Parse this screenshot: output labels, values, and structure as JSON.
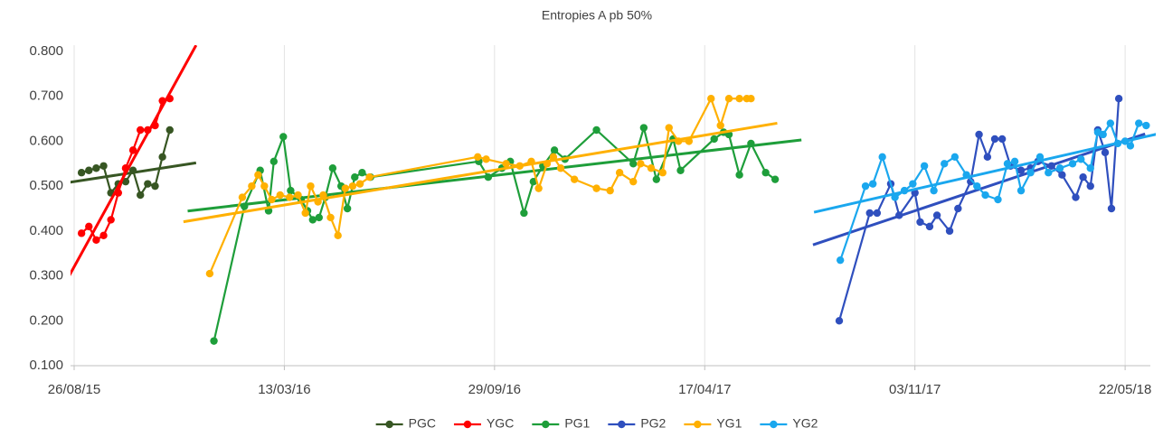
{
  "chart_data": {
    "type": "line",
    "title": "Entropies A pb 50%",
    "xlim": [
      "2015-08-26",
      "2018-06-15"
    ],
    "xticks": [
      {
        "value": "2015-08-26",
        "label": "26/08/15"
      },
      {
        "value": "2016-03-13",
        "label": "13/03/16"
      },
      {
        "value": "2016-09-29",
        "label": "29/09/16"
      },
      {
        "value": "2017-04-17",
        "label": "17/04/17"
      },
      {
        "value": "2017-11-03",
        "label": "03/11/17"
      },
      {
        "value": "2018-05-22",
        "label": "22/05/18"
      }
    ],
    "ylim": [
      0.1,
      0.8
    ],
    "yticks": [
      {
        "value": 0.1,
        "label": "0.100"
      },
      {
        "value": 0.2,
        "label": "0.200"
      },
      {
        "value": 0.3,
        "label": "0.300"
      },
      {
        "value": 0.4,
        "label": "0.400"
      },
      {
        "value": 0.5,
        "label": "0.500"
      },
      {
        "value": 0.6,
        "label": "0.600"
      },
      {
        "value": 0.7,
        "label": "0.700"
      },
      {
        "value": 0.8,
        "label": "0.800"
      }
    ],
    "grid": "x",
    "trendline": true,
    "legend": "bottom",
    "series": [
      {
        "name": "PGC",
        "color": "#375623",
        "x": [
          "2015-09-02",
          "2015-09-09",
          "2015-09-16",
          "2015-09-23",
          "2015-09-30",
          "2015-10-07",
          "2015-10-14",
          "2015-10-21",
          "2015-10-28",
          "2015-11-04",
          "2015-11-11",
          "2015-11-18",
          "2015-11-25"
        ],
        "values": [
          0.53,
          0.535,
          0.54,
          0.545,
          0.485,
          0.505,
          0.51,
          0.535,
          0.48,
          0.505,
          0.5,
          0.565,
          0.625
        ]
      },
      {
        "name": "YGC",
        "color": "#ff0000",
        "x": [
          "2015-09-02",
          "2015-09-09",
          "2015-09-16",
          "2015-09-23",
          "2015-09-30",
          "2015-10-07",
          "2015-10-14",
          "2015-10-21",
          "2015-10-28",
          "2015-11-04",
          "2015-11-11",
          "2015-11-18",
          "2015-11-25"
        ],
        "values": [
          0.395,
          0.41,
          0.38,
          0.39,
          0.425,
          0.485,
          0.54,
          0.58,
          0.625,
          0.625,
          0.635,
          0.69,
          0.695
        ]
      },
      {
        "name": "PG1",
        "color": "#1e9e3a",
        "x": [
          "2016-01-06",
          "2016-02-04",
          "2016-02-19",
          "2016-02-27",
          "2016-03-03",
          "2016-03-12",
          "2016-03-19",
          "2016-03-29",
          "2016-04-04",
          "2016-04-09",
          "2016-04-15",
          "2016-04-21",
          "2016-04-28",
          "2016-05-06",
          "2016-05-12",
          "2016-05-19",
          "2016-05-26",
          "2016-06-03",
          "2016-09-14",
          "2016-09-23",
          "2016-10-06",
          "2016-10-14",
          "2016-10-27",
          "2016-11-05",
          "2016-11-14",
          "2016-11-25",
          "2016-12-05",
          "2017-01-04",
          "2017-02-08",
          "2017-02-18",
          "2017-03-02",
          "2017-03-18",
          "2017-03-25",
          "2017-04-26",
          "2017-05-05",
          "2017-05-10",
          "2017-05-20",
          "2017-05-31",
          "2017-06-14",
          "2017-06-23"
        ],
        "values": [
          0.155,
          0.455,
          0.535,
          0.445,
          0.555,
          0.61,
          0.49,
          0.47,
          0.445,
          0.425,
          0.43,
          0.475,
          0.54,
          0.5,
          0.45,
          0.52,
          0.53,
          0.52,
          0.555,
          0.52,
          0.54,
          0.555,
          0.44,
          0.51,
          0.545,
          0.58,
          0.56,
          0.625,
          0.55,
          0.63,
          0.515,
          0.605,
          0.535,
          0.605,
          0.62,
          0.615,
          0.525,
          0.595,
          0.53,
          0.515
        ]
      },
      {
        "name": "PG2",
        "color": "#2f4fbe",
        "x": [
          "2017-08-23",
          "2017-09-21",
          "2017-09-28",
          "2017-10-11",
          "2017-10-19",
          "2017-11-03",
          "2017-11-08",
          "2017-11-17",
          "2017-11-24",
          "2017-12-06",
          "2017-12-14",
          "2017-12-26",
          "2018-01-03",
          "2018-01-11",
          "2018-01-18",
          "2018-01-25",
          "2018-02-02",
          "2018-02-12",
          "2018-02-21",
          "2018-02-28",
          "2018-03-13",
          "2018-03-23",
          "2018-04-05",
          "2018-04-12",
          "2018-04-19",
          "2018-04-26",
          "2018-05-03",
          "2018-05-09",
          "2018-05-16"
        ],
        "values": [
          0.2,
          0.44,
          0.44,
          0.505,
          0.435,
          0.485,
          0.42,
          0.41,
          0.435,
          0.4,
          0.45,
          0.51,
          0.615,
          0.565,
          0.605,
          0.605,
          0.545,
          0.535,
          0.54,
          0.555,
          0.545,
          0.525,
          0.475,
          0.52,
          0.5,
          0.625,
          0.575,
          0.45,
          0.695
        ]
      },
      {
        "name": "YG1",
        "color": "#ffb000",
        "x": [
          "2016-01-02",
          "2016-02-02",
          "2016-02-11",
          "2016-02-17",
          "2016-02-23",
          "2016-03-01",
          "2016-03-09",
          "2016-03-18",
          "2016-03-26",
          "2016-04-02",
          "2016-04-07",
          "2016-04-14",
          "2016-04-19",
          "2016-04-26",
          "2016-05-03",
          "2016-05-10",
          "2016-05-17",
          "2016-05-24",
          "2016-06-02",
          "2016-09-13",
          "2016-09-21",
          "2016-10-10",
          "2016-10-23",
          "2016-11-03",
          "2016-11-10",
          "2016-11-18",
          "2016-11-24",
          "2016-12-01",
          "2016-12-14",
          "2017-01-04",
          "2017-01-17",
          "2017-01-26",
          "2017-02-08",
          "2017-02-15",
          "2017-02-25",
          "2017-03-08",
          "2017-03-14",
          "2017-03-23",
          "2017-04-02",
          "2017-04-23",
          "2017-05-02",
          "2017-05-10",
          "2017-05-20",
          "2017-05-27",
          "2017-05-31"
        ],
        "values": [
          0.305,
          0.475,
          0.5,
          0.525,
          0.5,
          0.47,
          0.48,
          0.475,
          0.48,
          0.44,
          0.5,
          0.465,
          0.48,
          0.43,
          0.39,
          0.495,
          0.5,
          0.505,
          0.52,
          0.565,
          0.56,
          0.55,
          0.545,
          0.555,
          0.495,
          0.55,
          0.565,
          0.54,
          0.515,
          0.495,
          0.49,
          0.53,
          0.51,
          0.55,
          0.54,
          0.53,
          0.63,
          0.6,
          0.6,
          0.695,
          0.635,
          0.695,
          0.695,
          0.695,
          0.695
        ]
      },
      {
        "name": "YG2",
        "color": "#1aa7ee",
        "x": [
          "2017-08-24",
          "2017-09-17",
          "2017-09-24",
          "2017-10-03",
          "2017-10-15",
          "2017-10-24",
          "2017-11-01",
          "2017-11-12",
          "2017-11-21",
          "2017-12-01",
          "2017-12-11",
          "2017-12-22",
          "2018-01-01",
          "2018-01-09",
          "2018-01-21",
          "2018-01-30",
          "2018-02-06",
          "2018-02-12",
          "2018-02-21",
          "2018-03-02",
          "2018-03-10",
          "2018-03-21",
          "2018-04-02",
          "2018-04-10",
          "2018-04-19",
          "2018-04-26",
          "2018-05-01",
          "2018-05-08",
          "2018-05-15",
          "2018-05-22",
          "2018-05-27",
          "2018-06-04",
          "2018-06-11"
        ],
        "values": [
          0.335,
          0.5,
          0.505,
          0.565,
          0.475,
          0.49,
          0.505,
          0.545,
          0.49,
          0.55,
          0.565,
          0.525,
          0.5,
          0.48,
          0.47,
          0.55,
          0.555,
          0.49,
          0.53,
          0.565,
          0.53,
          0.54,
          0.55,
          0.56,
          0.54,
          0.62,
          0.615,
          0.64,
          0.595,
          0.6,
          0.59,
          0.64,
          0.635
        ]
      }
    ]
  }
}
